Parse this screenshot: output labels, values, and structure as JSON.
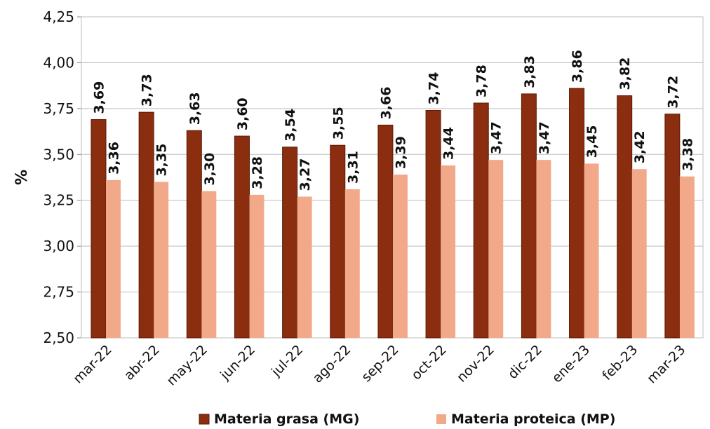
{
  "chart_data": {
    "type": "bar",
    "ylabel": "%",
    "ylim": [
      2.5,
      4.25
    ],
    "y_ticks": [
      "2,50",
      "2,75",
      "3,00",
      "3,25",
      "3,50",
      "3,75",
      "4,00",
      "4,25"
    ],
    "grid": "horizontal",
    "legend_position": "bottom",
    "categories": [
      "mar-22",
      "abr-22",
      "may-22",
      "jun-22",
      "jul-22",
      "ago-22",
      "sep-22",
      "oct-22",
      "nov-22",
      "dic-22",
      "ene-23",
      "feb-23",
      "mar-23"
    ],
    "series": [
      {
        "name": "Materia grasa (MG)",
        "color": "#8B2E10",
        "values": [
          3.69,
          3.73,
          3.63,
          3.6,
          3.54,
          3.55,
          3.66,
          3.74,
          3.78,
          3.83,
          3.86,
          3.82,
          3.72
        ],
        "labels": [
          "3,69",
          "3,73",
          "3,63",
          "3,60",
          "3,54",
          "3,55",
          "3,66",
          "3,74",
          "3,78",
          "3,83",
          "3,86",
          "3,82",
          "3,72"
        ]
      },
      {
        "name": "Materia proteica (MP)",
        "color": "#F2A98A",
        "values": [
          3.36,
          3.35,
          3.3,
          3.28,
          3.27,
          3.31,
          3.39,
          3.44,
          3.47,
          3.47,
          3.45,
          3.42,
          3.38
        ],
        "labels": [
          "3,36",
          "3,35",
          "3,30",
          "3,28",
          "3,27",
          "3,31",
          "3,39",
          "3,44",
          "3,47",
          "3,47",
          "3,45",
          "3,42",
          "3,38"
        ]
      }
    ]
  }
}
